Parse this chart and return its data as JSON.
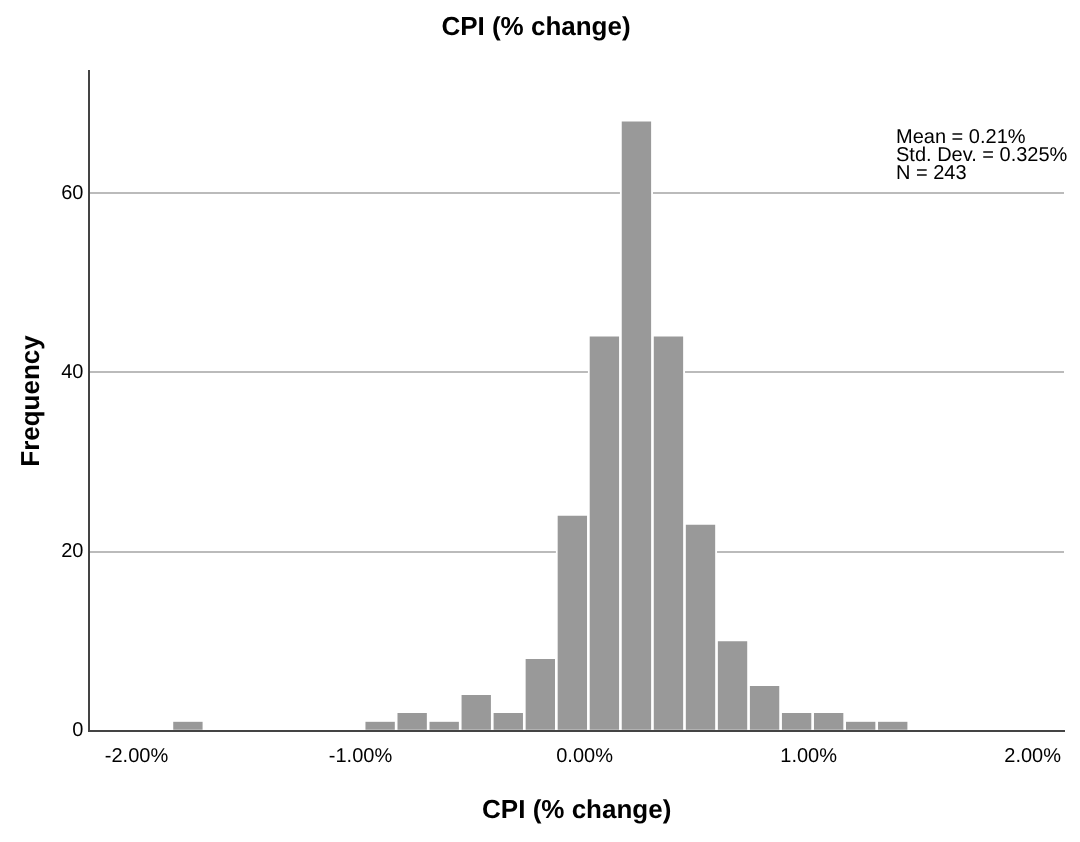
{
  "chart_data": {
    "type": "histogram",
    "title": "CPI (% change)",
    "xlabel": "CPI (% change)",
    "ylabel": "Frequency",
    "bins": [
      -1.842,
      -1.699,
      -1.556,
      -1.413,
      -1.27,
      -1.127,
      -0.984,
      -0.841,
      -0.698,
      -0.555,
      -0.412,
      -0.269,
      -0.126,
      0.017,
      0.16,
      0.303,
      0.446,
      0.589,
      0.732,
      0.875,
      1.018,
      1.161,
      1.304,
      1.447
    ],
    "values": [
      1,
      0,
      0,
      0,
      0,
      0,
      1,
      2,
      1,
      4,
      2,
      8,
      24,
      44,
      68,
      44,
      23,
      10,
      5,
      2,
      2,
      1,
      1
    ],
    "color": "#999999",
    "xlim": [
      -2.21,
      2.14
    ],
    "xticks": [
      {
        "value": -2,
        "label": "-2.00%"
      },
      {
        "value": -1,
        "label": "-1.00%"
      },
      {
        "value": 0,
        "label": "0.00%"
      },
      {
        "value": 1,
        "label": "1.00%"
      },
      {
        "value": 2,
        "label": "2.00%"
      }
    ],
    "ylim": [
      0,
      73.6
    ],
    "yticks": [
      0,
      20,
      40,
      60
    ],
    "grid": "y",
    "legend": false,
    "annotations": [
      "Mean = 0.21%",
      "Std. Dev. = 0.325%",
      "N = 243"
    ]
  }
}
